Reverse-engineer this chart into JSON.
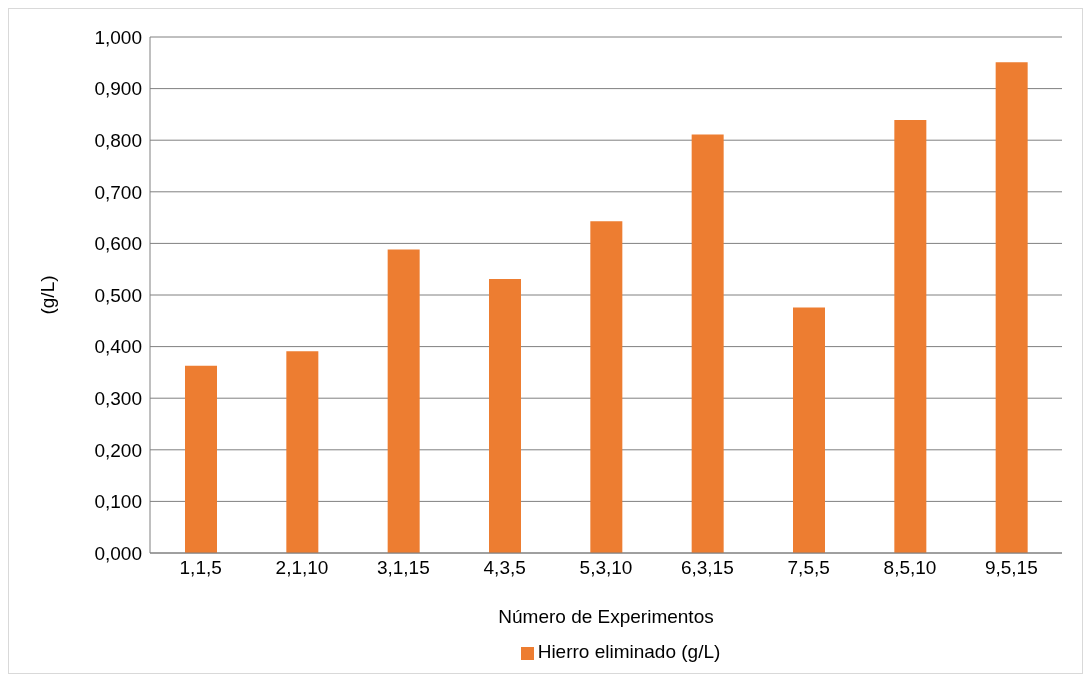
{
  "chart_data": {
    "type": "bar",
    "xlabel": "Número de Experimentos",
    "ylabel": "(g/L)",
    "categories": [
      "1,1,5",
      "2,1,10",
      "3,1,15",
      "4,3,5",
      "5,3,10",
      "6,3,15",
      "7,5,5",
      "8,5,10",
      "9,5,15"
    ],
    "series": [
      {
        "name": "Hierro eliminado (g/L)",
        "color": "#ed7d31",
        "values": [
          0.363,
          0.391,
          0.588,
          0.531,
          0.643,
          0.811,
          0.476,
          0.839,
          0.951
        ]
      }
    ],
    "ylim": [
      0,
      1
    ],
    "yticks": [
      {
        "value": 0,
        "label": "0,000"
      },
      {
        "value": 0.1,
        "label": "0,100"
      },
      {
        "value": 0.2,
        "label": "0,200"
      },
      {
        "value": 0.3,
        "label": "0,300"
      },
      {
        "value": 0.4,
        "label": "0,400"
      },
      {
        "value": 0.5,
        "label": "0,500"
      },
      {
        "value": 0.6,
        "label": "0,600"
      },
      {
        "value": 0.7,
        "label": "0,700"
      },
      {
        "value": 0.8,
        "label": "0,800"
      },
      {
        "value": 0.9,
        "label": "0,900"
      },
      {
        "value": 1,
        "label": "1,000"
      }
    ],
    "grid": "y",
    "legend": "bottom"
  }
}
